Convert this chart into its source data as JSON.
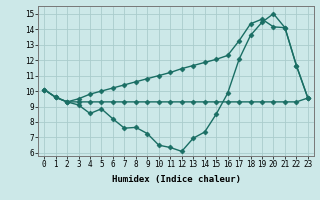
{
  "series_flat": {
    "x": [
      0,
      1,
      2,
      3,
      4,
      5,
      6,
      7,
      8,
      9,
      10,
      11,
      12,
      13,
      14,
      15,
      16,
      17,
      18,
      19,
      20,
      21,
      22,
      23
    ],
    "y": [
      10.1,
      9.6,
      9.3,
      9.3,
      9.3,
      9.3,
      9.3,
      9.3,
      9.3,
      9.3,
      9.3,
      9.3,
      9.3,
      9.3,
      9.3,
      9.3,
      9.3,
      9.3,
      9.3,
      9.3,
      9.3,
      9.3,
      9.3,
      9.55
    ]
  },
  "series_zigzag": {
    "x": [
      0,
      1,
      2,
      3,
      4,
      5,
      6,
      7,
      8,
      9,
      10,
      11,
      12,
      13,
      14,
      15,
      16,
      17,
      18,
      19,
      20,
      21,
      22,
      23
    ],
    "y": [
      10.1,
      9.6,
      9.3,
      9.1,
      8.55,
      8.85,
      8.2,
      7.6,
      7.65,
      7.25,
      6.5,
      6.35,
      6.1,
      6.95,
      7.35,
      8.5,
      9.85,
      12.05,
      13.6,
      14.45,
      15.0,
      14.1,
      11.65,
      9.55
    ]
  },
  "series_diagonal": {
    "x": [
      0,
      1,
      2,
      3,
      4,
      5,
      6,
      7,
      8,
      9,
      10,
      11,
      12,
      13,
      14,
      15,
      16,
      17,
      18,
      19,
      20,
      21,
      22,
      23
    ],
    "y": [
      10.1,
      9.6,
      9.3,
      9.5,
      9.8,
      10.0,
      10.2,
      10.4,
      10.6,
      10.8,
      11.0,
      11.2,
      11.45,
      11.65,
      11.85,
      12.05,
      12.3,
      13.25,
      14.35,
      14.65,
      14.15,
      14.1,
      11.65,
      9.55
    ]
  },
  "xlim": [
    -0.5,
    23.5
  ],
  "ylim": [
    5.8,
    15.5
  ],
  "yticks": [
    6,
    7,
    8,
    9,
    10,
    11,
    12,
    13,
    14,
    15
  ],
  "xticks": [
    0,
    1,
    2,
    3,
    4,
    5,
    6,
    7,
    8,
    9,
    10,
    11,
    12,
    13,
    14,
    15,
    16,
    17,
    18,
    19,
    20,
    21,
    22,
    23
  ],
  "xlabel": "Humidex (Indice chaleur)",
  "background_color": "#cce8e8",
  "grid_color": "#aacccc",
  "line_color": "#1a6e64",
  "tick_fontsize": 5.5,
  "label_fontsize": 6.5,
  "linewidth": 1.0,
  "markersize": 2.5
}
